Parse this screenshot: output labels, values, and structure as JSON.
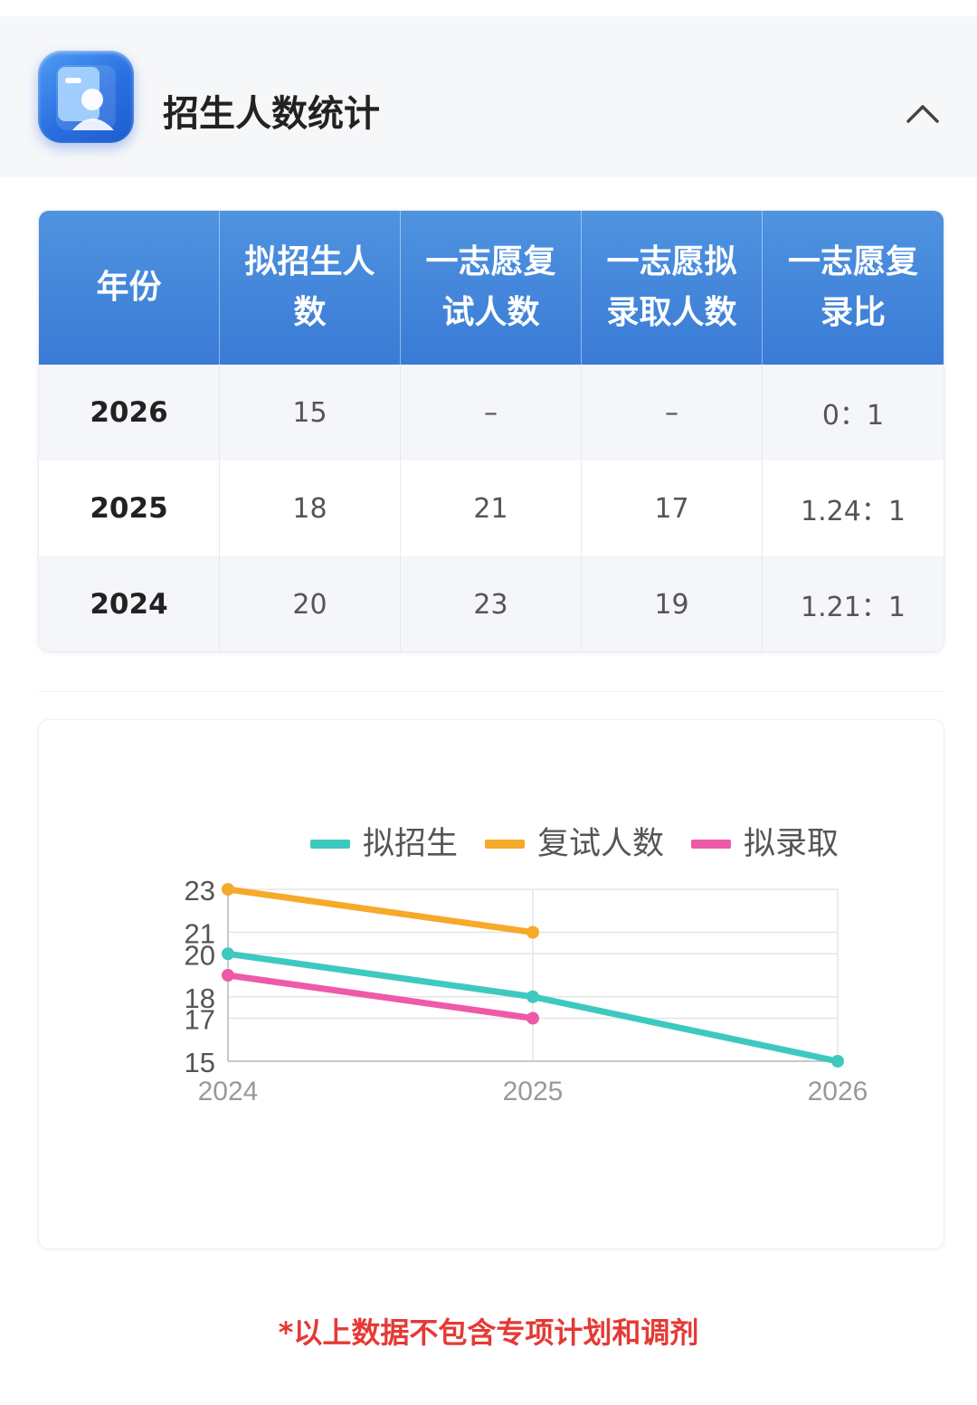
{
  "header": {
    "title": "招生人数统计",
    "icon": "person-card-icon",
    "collapse_icon": "chevron-up-icon"
  },
  "table": {
    "columns": [
      "年份",
      "拟招生人数",
      "一志愿复试人数",
      "一志愿拟录取人数",
      "一志愿复录比"
    ],
    "rows": [
      [
        "2026",
        "15",
        "–",
        "–",
        "0：1"
      ],
      [
        "2025",
        "18",
        "21",
        "17",
        "1.24：1"
      ],
      [
        "2024",
        "20",
        "23",
        "19",
        "1.21：1"
      ]
    ]
  },
  "chart_data": {
    "type": "line",
    "x": [
      "2024",
      "2025",
      "2026"
    ],
    "series": [
      {
        "name": "拟招生",
        "color": "#3ec9c0",
        "values": [
          20,
          18,
          15
        ]
      },
      {
        "name": "复试人数",
        "color": "#f5aa2a",
        "values": [
          23,
          21,
          null
        ]
      },
      {
        "name": "拟录取",
        "color": "#ee5aa8",
        "values": [
          19,
          17,
          null
        ]
      }
    ],
    "yticks": [
      15,
      17,
      18,
      20,
      21,
      23
    ],
    "ylim": [
      15,
      23
    ],
    "grid": true,
    "legend": "top"
  },
  "footnote": "*以上数据不包含专项计划和调剂"
}
